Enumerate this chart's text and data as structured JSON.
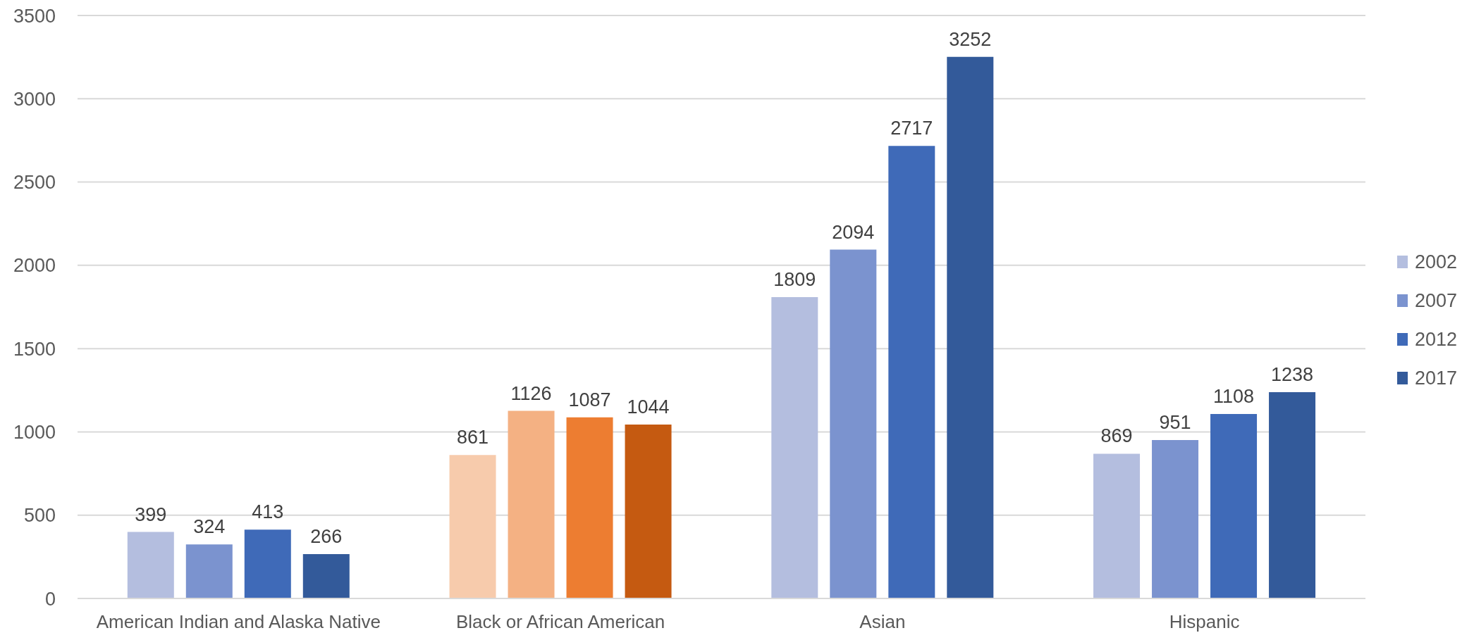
{
  "chart_data": {
    "type": "bar",
    "categories": [
      "American Indian and Alaska Native",
      "Black or African American",
      "Asian",
      "Hispanic"
    ],
    "series": [
      {
        "name": "2002",
        "color": "#b4bedf",
        "colors": [
          "#b4bedf",
          "#f7cbac",
          "#b4bedf",
          "#b4bedf"
        ],
        "values": [
          399,
          861,
          1809,
          869
        ]
      },
      {
        "name": "2007",
        "color": "#7b93cf",
        "colors": [
          "#7b93cf",
          "#f4b183",
          "#7b93cf",
          "#7b93cf"
        ],
        "values": [
          324,
          1126,
          2094,
          951
        ]
      },
      {
        "name": "2012",
        "color": "#3f6ab8",
        "colors": [
          "#3f6ab8",
          "#ed7d31",
          "#3f6ab8",
          "#3f6ab8"
        ],
        "values": [
          413,
          1087,
          2717,
          1108
        ]
      },
      {
        "name": "2017",
        "color": "#335a9a",
        "colors": [
          "#335a9a",
          "#c55a11",
          "#335a9a",
          "#335a9a"
        ],
        "values": [
          266,
          1044,
          3252,
          1238
        ]
      }
    ],
    "ylim": [
      0,
      3500
    ],
    "yticks": [
      0,
      500,
      1000,
      1500,
      2000,
      2500,
      3000,
      3500
    ],
    "grid": "y",
    "legend": "right",
    "data_labels": true
  }
}
